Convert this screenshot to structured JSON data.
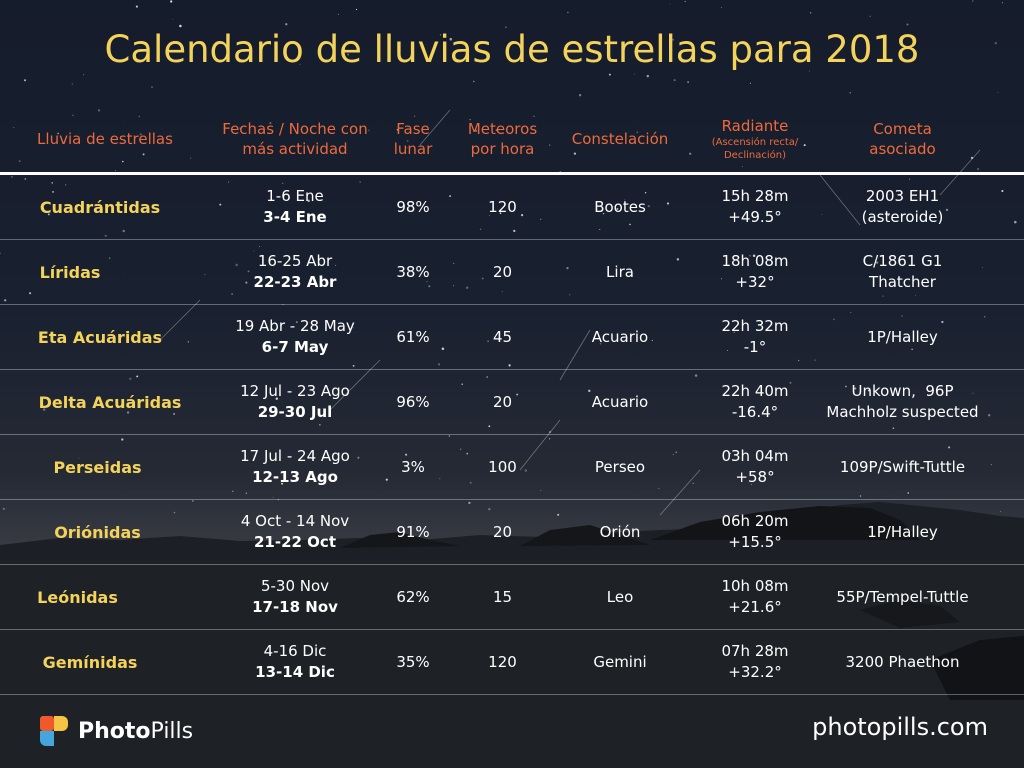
{
  "title": "Calendario de lluvias de estrellas para 2018",
  "headers": {
    "name": "Lluvia de estrellas",
    "dates_1": "Fechas / Noche con",
    "dates_2": "más actividad",
    "phase_1": "Fase",
    "phase_2": "lunar",
    "meteors_1": "Meteoros",
    "meteors_2": "por hora",
    "constellation": "Constelación",
    "radiant": "Radiante",
    "radiant_sub_1": "(Ascensión recta/",
    "radiant_sub_2": "Declinación)",
    "comet_1": "Cometa",
    "comet_2": "asociado"
  },
  "rows": [
    {
      "name": "Cuadrántidas",
      "dates": "1-6 Ene",
      "peak": "3-4 Ene",
      "phase": "98%",
      "meteors": "120",
      "constellation": "Bootes",
      "ra": "15h 28m",
      "dec": "+49.5°",
      "comet_1": "2003 EH1",
      "comet_2": "(asteroide)"
    },
    {
      "name": "Líridas",
      "dates": "16-25 Abr",
      "peak": "22-23 Abr",
      "phase": "38%",
      "meteors": "20",
      "constellation": "Lira",
      "ra": "18h 08m",
      "dec": "+32°",
      "comet_1": "C/1861 G1",
      "comet_2": "Thatcher"
    },
    {
      "name": "Eta Acuáridas",
      "dates": "19 Abr - 28 May",
      "peak": "6-7 May",
      "phase": "61%",
      "meteors": "45",
      "constellation": "Acuario",
      "ra": "22h 32m",
      "dec": "-1°",
      "comet_1": "1P/Halley",
      "comet_2": ""
    },
    {
      "name": "Delta Acuáridas",
      "dates": "12 Jul - 23 Ago",
      "peak": "29-30 Jul",
      "phase": "96%",
      "meteors": "20",
      "constellation": "Acuario",
      "ra": "22h 40m",
      "dec": "-16.4°",
      "comet_1": "Unkown,  96P",
      "comet_2": "Machholz suspected"
    },
    {
      "name": "Perseidas",
      "dates": "17 Jul - 24 Ago",
      "peak": "12-13 Ago",
      "phase": "3%",
      "meteors": "100",
      "constellation": "Perseo",
      "ra": "03h 04m",
      "dec": "+58°",
      "comet_1": "109P/Swift-Tuttle",
      "comet_2": ""
    },
    {
      "name": "Oriónidas",
      "dates": "4 Oct - 14 Nov",
      "peak": "21-22 Oct",
      "phase": "91%",
      "meteors": "20",
      "constellation": "Orión",
      "ra": "06h 20m",
      "dec": "+15.5°",
      "comet_1": "1P/Halley",
      "comet_2": ""
    },
    {
      "name": "Leónidas",
      "dates": "5-30 Nov",
      "peak": "17-18 Nov",
      "phase": "62%",
      "meteors": "15",
      "constellation": "Leo",
      "ra": "10h 08m",
      "dec": "+21.6°",
      "comet_1": "55P/Tempel-Tuttle",
      "comet_2": ""
    },
    {
      "name": "Gemínidas",
      "dates": "4-16 Dic",
      "peak": "13-14 Dic",
      "phase": "35%",
      "meteors": "120",
      "constellation": "Gemini",
      "ra": "07h 28m",
      "dec": "+32.2°",
      "comet_1": "3200 Phaethon",
      "comet_2": ""
    }
  ],
  "footer": {
    "brand_bold": "Photo",
    "brand_regular": "Pills",
    "url": "photopills.com"
  },
  "colors": {
    "title": "#f4d35a",
    "header": "#ee6a3c",
    "shower_name": "#f4d35a",
    "logo_orange": "#ef5a2b",
    "logo_yellow": "#f6c344",
    "logo_blue": "#45a5dd"
  }
}
